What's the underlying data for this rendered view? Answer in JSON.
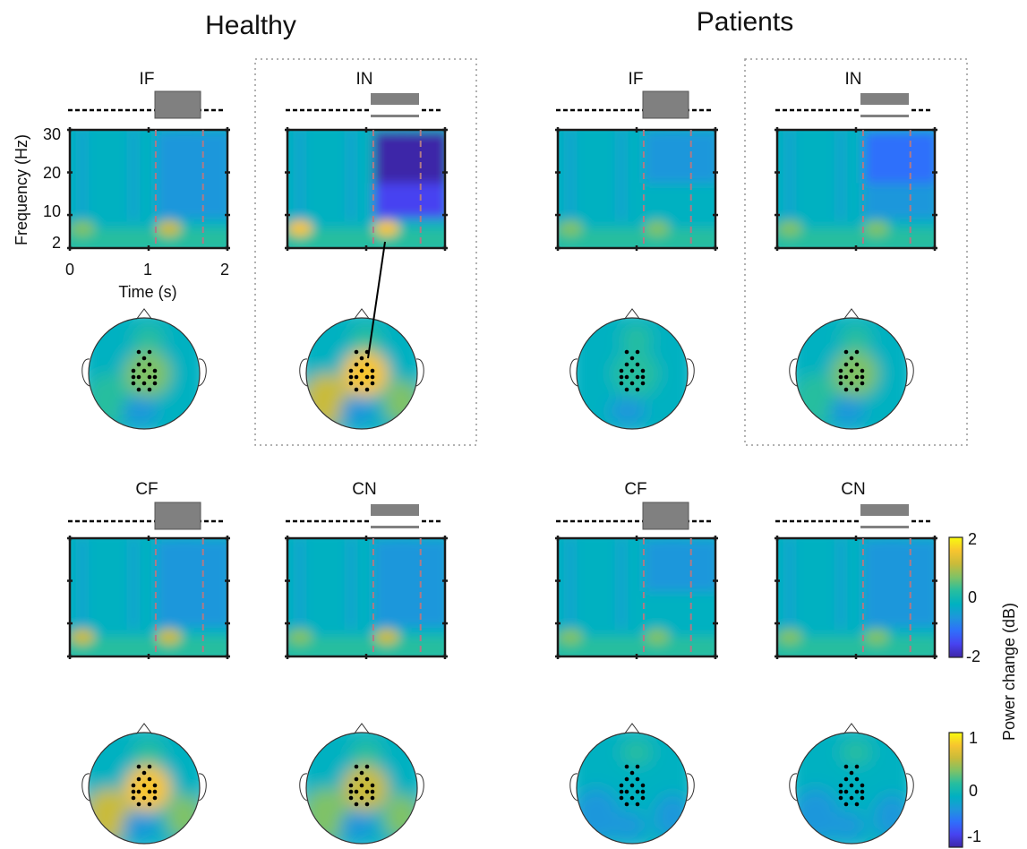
{
  "groups": [
    {
      "id": "healthy",
      "title": "Healthy"
    },
    {
      "id": "patients",
      "title": "Patients"
    }
  ],
  "conditions": [
    {
      "id": "IF",
      "label": "IF",
      "stimulus": "single"
    },
    {
      "id": "IN",
      "label": "IN",
      "stimulus": "double"
    },
    {
      "id": "CF",
      "label": "CF",
      "stimulus": "single"
    },
    {
      "id": "CN",
      "label": "CN",
      "stimulus": "double"
    }
  ],
  "axes": {
    "ylabel": "Frequency (Hz)",
    "xlabel": "Time (s)",
    "y_ticks": [
      "30",
      "20",
      "10",
      "2"
    ],
    "x_ticks": [
      "0",
      "1",
      "2"
    ]
  },
  "colorbars": [
    {
      "id": "tf",
      "ticks": [
        "2",
        "0",
        "-2"
      ]
    },
    {
      "id": "topo",
      "ticks": [
        "1",
        "0",
        "-1"
      ]
    }
  ],
  "colorbar_label": "Power change (dB)",
  "colormap": [
    "#3e26a8",
    "#4743f1",
    "#2f6ffb",
    "#1e97db",
    "#00b1c1",
    "#27be9f",
    "#7fc266",
    "#c9bb3a",
    "#f7c52f",
    "#f9fb0e"
  ],
  "tf_panels": [
    {
      "group": "healthy",
      "condition": "IF",
      "alpha_burst": 0.72,
      "late_low": 0.35,
      "late_high": 0.28
    },
    {
      "group": "healthy",
      "condition": "IN",
      "alpha_burst": 0.85,
      "late_low": 0.15,
      "late_high": 0.05
    },
    {
      "group": "patients",
      "condition": "IF",
      "alpha_burst": 0.62,
      "late_low": 0.4,
      "late_high": 0.36
    },
    {
      "group": "patients",
      "condition": "IN",
      "alpha_burst": 0.66,
      "late_low": 0.34,
      "late_high": 0.26
    },
    {
      "group": "healthy",
      "condition": "CF",
      "alpha_burst": 0.75,
      "late_low": 0.3,
      "late_high": 0.3
    },
    {
      "group": "healthy",
      "condition": "CN",
      "alpha_burst": 0.72,
      "late_low": 0.3,
      "late_high": 0.28
    },
    {
      "group": "patients",
      "condition": "CF",
      "alpha_burst": 0.64,
      "late_low": 0.4,
      "late_high": 0.36
    },
    {
      "group": "patients",
      "condition": "CN",
      "alpha_burst": 0.62,
      "late_low": 0.38,
      "late_high": 0.34
    }
  ],
  "topo_panels": [
    {
      "group": "healthy",
      "condition": "IF",
      "center": 0.62
    },
    {
      "group": "healthy",
      "condition": "IN",
      "center": 0.88
    },
    {
      "group": "patients",
      "condition": "IF",
      "center": 0.55
    },
    {
      "group": "patients",
      "condition": "IN",
      "center": 0.62
    },
    {
      "group": "healthy",
      "condition": "CF",
      "center": 0.86
    },
    {
      "group": "healthy",
      "condition": "CN",
      "center": 0.82
    },
    {
      "group": "patients",
      "condition": "CF",
      "center": 0.45
    },
    {
      "group": "patients",
      "condition": "CN",
      "center": 0.42
    }
  ]
}
